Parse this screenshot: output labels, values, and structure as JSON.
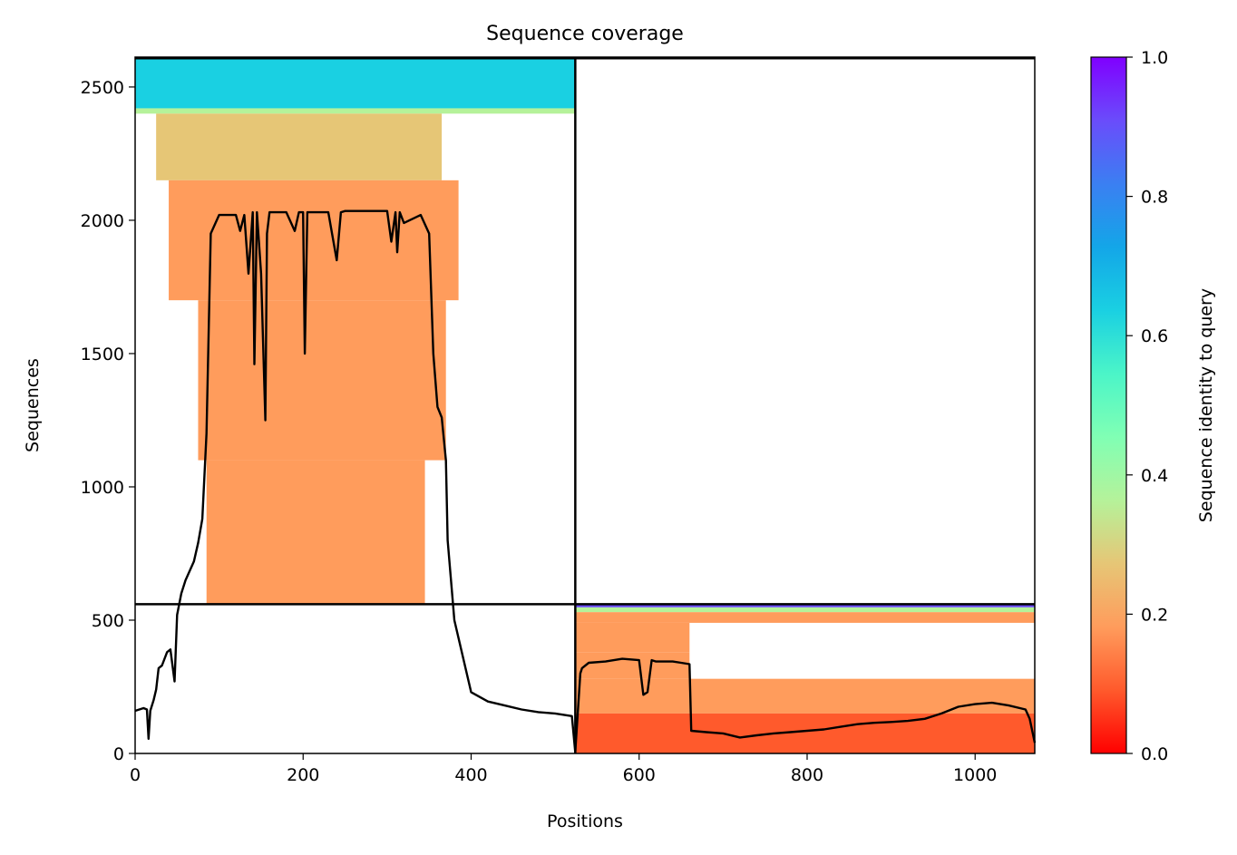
{
  "chart_data": [
    {
      "type": "heatmap",
      "title": "Sequence coverage",
      "xlabel": "Positions",
      "ylabel": "Sequences",
      "xlim": [
        0,
        1071
      ],
      "ylim": [
        0,
        2612
      ],
      "x_ticks": [
        0,
        200,
        400,
        600,
        800,
        1000
      ],
      "y_ticks": [
        0,
        500,
        1000,
        1500,
        2000,
        2500
      ],
      "grid": false,
      "domain_boundary_x": 524,
      "domain_boundary_y": 560,
      "colormap": "rainbow_r",
      "blocks": [
        {
          "x": [
            0,
            524
          ],
          "y": [
            2420,
            2612
          ],
          "identity": 0.62
        },
        {
          "x": [
            0,
            524
          ],
          "y": [
            2400,
            2420
          ],
          "identity": 0.35
        },
        {
          "x": [
            25,
            365
          ],
          "y": [
            2150,
            2400
          ],
          "identity": 0.27
        },
        {
          "x": [
            40,
            385
          ],
          "y": [
            1700,
            2150
          ],
          "identity": 0.22
        },
        {
          "x": [
            75,
            370
          ],
          "y": [
            1100,
            1700
          ],
          "identity": 0.19
        },
        {
          "x": [
            85,
            345
          ],
          "y": [
            560,
            1100
          ],
          "identity": 0.16
        },
        {
          "x": [
            524,
            1071
          ],
          "y": [
            548,
            560
          ],
          "identity": 0.9
        },
        {
          "x": [
            524,
            1071
          ],
          "y": [
            530,
            548
          ],
          "identity": 0.4
        },
        {
          "x": [
            524,
            1071
          ],
          "y": [
            490,
            530
          ],
          "identity": 0.22
        },
        {
          "x": [
            524,
            660
          ],
          "y": [
            380,
            490
          ],
          "identity": 0.22
        },
        {
          "x": [
            524,
            660
          ],
          "y": [
            280,
            380
          ],
          "identity": 0.18
        },
        {
          "x": [
            524,
            1071
          ],
          "y": [
            150,
            280
          ],
          "identity": 0.14
        },
        {
          "x": [
            524,
            1071
          ],
          "y": [
            0,
            150
          ],
          "identity": 0.08
        }
      ],
      "series": [
        {
          "x": [
            0,
            10,
            14,
            16,
            18,
            22,
            25,
            28,
            32,
            38,
            42,
            47,
            50,
            55,
            60,
            70,
            75,
            80,
            85,
            90,
            100,
            120,
            125,
            130,
            135,
            140,
            142,
            145,
            150,
            155,
            157,
            160,
            180,
            190,
            195,
            200,
            202,
            205,
            210,
            230,
            240,
            245,
            250,
            300,
            305,
            310,
            312,
            315,
            320,
            340,
            350,
            355,
            360,
            365,
            370,
            372,
            380,
            400,
            420,
            440,
            460,
            480,
            500,
            520,
            524,
            530,
            532,
            540,
            560,
            580,
            600,
            605,
            610,
            615,
            620,
            640,
            650,
            660,
            662,
            680,
            700,
            720,
            740,
            760,
            780,
            800,
            820,
            840,
            860,
            880,
            900,
            920,
            940,
            960,
            980,
            1000,
            1020,
            1040,
            1060,
            1065,
            1071
          ],
          "values": [
            160,
            170,
            165,
            55,
            160,
            200,
            240,
            320,
            330,
            380,
            390,
            270,
            520,
            600,
            650,
            720,
            790,
            880,
            1200,
            1950,
            2020,
            2020,
            1960,
            2020,
            1800,
            2030,
            1460,
            2030,
            1800,
            1250,
            1950,
            2030,
            2030,
            1960,
            2030,
            2030,
            1500,
            2030,
            2030,
            2030,
            1850,
            2030,
            2035,
            2035,
            1920,
            2030,
            1880,
            2030,
            1990,
            2020,
            1950,
            1500,
            1300,
            1260,
            1100,
            800,
            500,
            230,
            195,
            180,
            165,
            155,
            150,
            140,
            5,
            300,
            320,
            340,
            345,
            355,
            350,
            220,
            230,
            350,
            345,
            345,
            340,
            335,
            85,
            80,
            75,
            60,
            68,
            75,
            80,
            85,
            90,
            100,
            110,
            115,
            118,
            122,
            130,
            150,
            175,
            185,
            190,
            180,
            165,
            130,
            40
          ]
        }
      ]
    },
    {
      "type": "colorbar",
      "label": "Sequence identity to query",
      "range": [
        0,
        1
      ],
      "ticks": [
        "0.0",
        "0.2",
        "0.4",
        "0.6",
        "0.8",
        "1.0"
      ],
      "colors": [
        "#ff0000",
        "#ff5a2c",
        "#ff9c5c",
        "#e6c676",
        "#b5f29a",
        "#80ffb4",
        "#4bf5c8",
        "#1ad0e2",
        "#13a6e8",
        "#3b7ff2",
        "#6a4cfb",
        "#8000ff"
      ]
    }
  ]
}
